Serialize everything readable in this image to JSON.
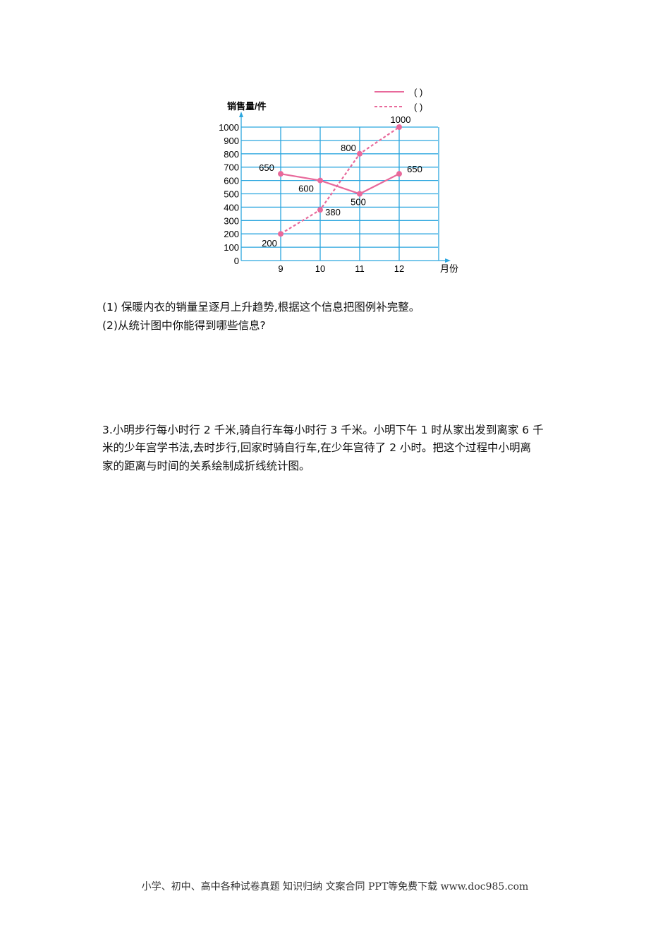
{
  "chart_data": {
    "type": "line",
    "ylabel": "销售量/件",
    "xlabel": "月份",
    "categories": [
      "9",
      "10",
      "11",
      "12"
    ],
    "yticks": [
      "0",
      "100",
      "200",
      "300",
      "400",
      "500",
      "600",
      "700",
      "800",
      "900",
      "1000"
    ],
    "ylim": [
      0,
      1000
    ],
    "grid": true,
    "legend_position": "top-right",
    "series": [
      {
        "name": "(    )",
        "style": "solid",
        "values": [
          650,
          600,
          500,
          650
        ],
        "labels": [
          "650",
          "600",
          "500",
          "650"
        ]
      },
      {
        "name": "(    )",
        "style": "dashed",
        "values": [
          200,
          380,
          800,
          1000
        ],
        "labels": [
          "200",
          "380",
          "800",
          "1000"
        ]
      }
    ],
    "colors": {
      "line": "#e8699b",
      "grid": "#2ba6df"
    }
  },
  "questions": {
    "q1": "(1) 保暖内衣的销量呈逐月上升趋势,根据这个信息把图例补完整。",
    "q2": "(2)从统计图中你能得到哪些信息?",
    "q3_line1": "3.小明步行每小时行 2 千米,骑自行车每小时行 3 千米。小明下午 1 时从家出发到离家 6 千",
    "q3_line2": "米的少年宫学书法,去时步行,回家时骑自行车,在少年宫待了 2 小时。把这个过程中小明离",
    "q3_line3": "家的距离与时间的关系绘制成折线统计图。"
  },
  "footer": "小学、初中、高中各种试卷真题 知识归纳 文案合同 PPT等免费下载   www.doc985.com"
}
